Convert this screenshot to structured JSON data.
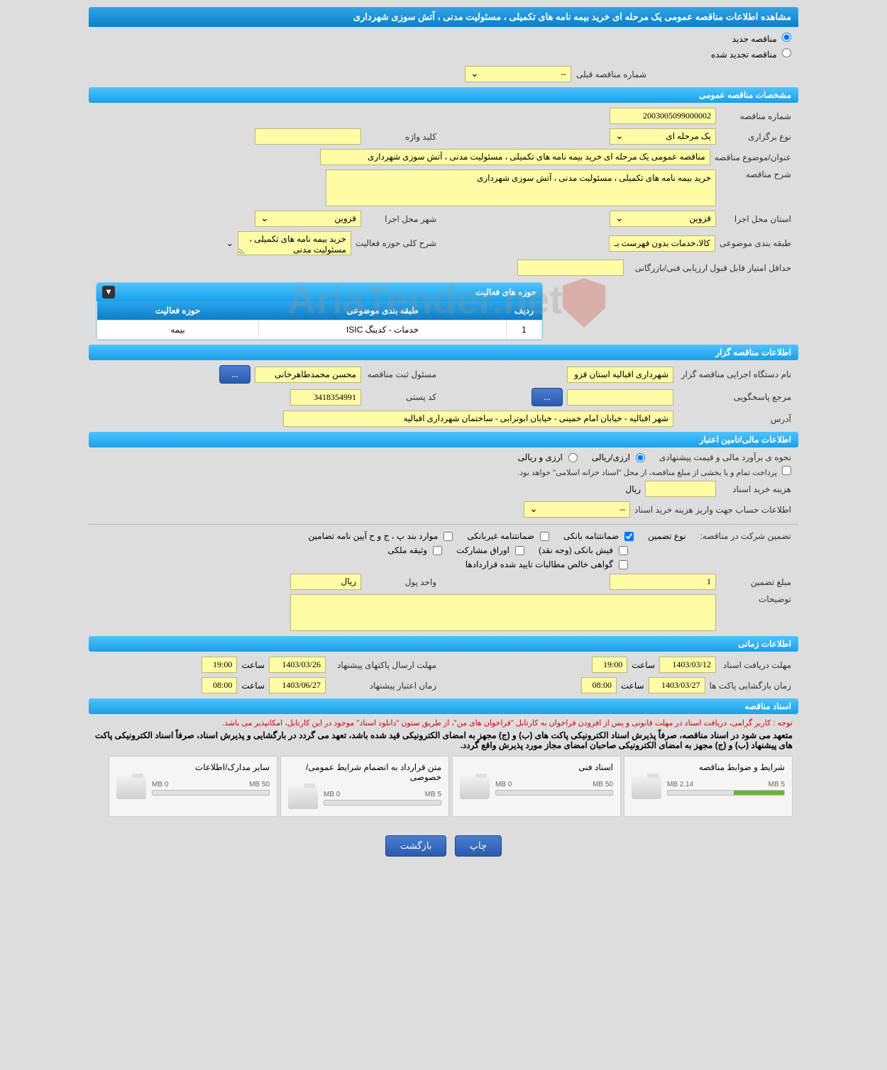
{
  "page_title": "مشاهده اطلاعات مناقصه عمومی یک مرحله ای خرید بیمه نامه های تکمیلی ، مسئولیت مدنی ، آتش سوزی شهرداری",
  "radio_options": {
    "new": "مناقصه جدید",
    "renewed": "مناقصه تجدید شده"
  },
  "previous_number": {
    "label": "شماره مناقصه قبلی",
    "value": "--"
  },
  "sections": {
    "general": "مشخصات مناقصه عمومی",
    "tenderer": "اطلاعات مناقصه گزار",
    "financial": "اطلاعات مالی/تامین اعتبار",
    "timing": "اطلاعات زمانی",
    "docs": "اسناد مناقصه"
  },
  "general": {
    "auction_number": {
      "label": "شماره مناقصه",
      "value": "2003005099000002"
    },
    "holding_type": {
      "label": "نوع برگزاری",
      "value": "یک مرحله ای"
    },
    "keyword": {
      "label": "کلید واژه",
      "value": ""
    },
    "title": {
      "label": "عنوان/موضوع مناقصه",
      "value": "مناقصه عمومی یک مرحله ای خرید بیمه نامه های تکمیلی ، مسئولیت مدنی ، آتش سوزی شهرداری"
    },
    "description": {
      "label": "شرح مناقصه",
      "value": "خرید بیمه نامه های تکمیلی ، مسئولیت مدنی ، آتش سوزی شهرداری"
    },
    "province": {
      "label": "استان محل اجرا",
      "value": "قزوین"
    },
    "city": {
      "label": "شهر محل اجرا",
      "value": "قزوین"
    },
    "category": {
      "label": "طبقه بندی موضوعی",
      "value": "کالا،خدمات بدون فهرست بـ"
    },
    "activity_scope": {
      "label": "شرح کلی حوزه فعالیت",
      "value": "خرید بیمه نامه های تکمیلی ، مسئولیت مدنی"
    },
    "min_score": {
      "label": "حداقل امتیاز قابل قبول ارزیابی فنی/بازرگانی",
      "value": ""
    }
  },
  "activity_box": {
    "title": "حوزه های فعالیت",
    "columns": {
      "row": "ردیف",
      "category": "طبقه بندی موضوعی",
      "field": "حوزه فعالیت"
    },
    "rows": [
      {
        "row": "1",
        "category": "خدمات - کدینگ ISIC",
        "field": "بیمه"
      }
    ]
  },
  "tenderer": {
    "agency": {
      "label": "نام دستگاه اجرایی مناقصه گزار",
      "value": "شهرداری اقبالیه استان قزو"
    },
    "responsible": {
      "label": "مسئول ثبت مناقصه",
      "value": "محسن محمدطاهرخانی"
    },
    "respondent": {
      "label": "مرجع پاسخگویی",
      "value": ""
    },
    "postal": {
      "label": "کد پستی",
      "value": "3418354991"
    },
    "address": {
      "label": "آدرس",
      "value": "شهر اقبالیه - خیابان امام خمینی - خیابان ابوترابی - ساختمان شهرداری اقبالیه"
    },
    "more_btn": "..."
  },
  "financial": {
    "estimate_method": {
      "label": "نحوه ی برآورد مالی و قیمت پیشنهادی",
      "opt1": "ارزی/ریالی",
      "opt2": "ارزی و ریالی"
    },
    "payment_note": "پرداخت تمام و یا بخشی از مبلغ مناقصه، از محل \"اسناد خزانه اسلامی\" خواهد بود.",
    "doc_cost": {
      "label": "هزینه خرید اسناد",
      "value": "",
      "unit": "ریال"
    },
    "account_info": {
      "label": "اطلاعات حساب جهت واریز هزینه خرید اسناد",
      "value": "--"
    },
    "guarantee_type_label": "نوع تضمین",
    "participation_label": "تضمین شرکت در مناقصه:",
    "guarantee_options": {
      "bank": "ضمانتنامه بانکی",
      "nonbank": "ضمانتنامه غیربانکی",
      "clauses": "موارد بند پ ، ج و ح آیین نامه تضامین",
      "cash": "فیش بانکی (وجه نقد)",
      "securities": "اوراق مشارکت",
      "property": "وثیقه ملکی",
      "certificate": "گواهی خالص مطالبات تایید شده قراردادها"
    },
    "guarantee_amount": {
      "label": "مبلغ تضمین",
      "value": "1"
    },
    "currency_unit": {
      "label": "واحد پول",
      "value": "ریال"
    },
    "notes": {
      "label": "توضیحات",
      "value": ""
    }
  },
  "timing": {
    "receive_deadline": {
      "label": "مهلت دریافت اسناد",
      "date": "1403/03/12",
      "time_label": "ساعت",
      "time": "19:00"
    },
    "packet_deadline": {
      "label": "مهلت ارسال پاکتهای پیشنهاد",
      "date": "1403/03/26",
      "time_label": "ساعت",
      "time": "19:00"
    },
    "opening_time": {
      "label": "زمان بازگشایی پاکت ها",
      "date": "1403/03/27",
      "time_label": "ساعت",
      "time": "08:00"
    },
    "validity": {
      "label": "زمان اعتبار پیشنهاد",
      "date": "1403/06/27",
      "time_label": "ساعت",
      "time": "08:00"
    }
  },
  "docs": {
    "notice_red": "توجه : کاربر گرامی، دریافت اسناد در مهلت قانونی و پس از افزودن فراخوان به کارتابل \"فراخوان های من\"، از طریق ستون \"دانلود اسناد\" موجود در این کارتابل، امکانپذیر می باشد.",
    "notice1": "متعهد می شود در اسناد مناقصه، صرفاً پذیرش اسناد الکترونیکی پاکت های (ب) و (ج) مجهز به امضای الکترونیکی قید شده باشد، تعهد می گردد در بارگشایی و پذیرش اسناد، صرفاً اسناد الکترونیکی پاکت های پیشنهاد (ب) و (ج) مجهز به امضای الکترونیکی صاحبان امضای مجاز مورد پذیرش واقع گردد.",
    "cards": [
      {
        "title": "شرایط و ضوابط مناقصه",
        "used": "2.14 MB",
        "total": "5 MB",
        "percent": 43
      },
      {
        "title": "اسناد فنی",
        "used": "0 MB",
        "total": "50 MB",
        "percent": 0
      },
      {
        "title": "متن قرارداد به انضمام شرایط عمومی/خصوصی",
        "used": "0 MB",
        "total": "5 MB",
        "percent": 0
      },
      {
        "title": "سایر مدارک/اطلاعات",
        "used": "0 MB",
        "total": "50 MB",
        "percent": 0
      }
    ]
  },
  "footer": {
    "print": "چاپ",
    "back": "بازگشت"
  },
  "watermark": "AriaTender.net",
  "colors": {
    "header_blue": "#0b7fc9",
    "section_blue": "#18a0e8",
    "yellow_bg": "#fffca6",
    "body_bg": "#dddddd",
    "btn_blue": "#2a5ab0",
    "progress_green": "#6ab52f"
  }
}
